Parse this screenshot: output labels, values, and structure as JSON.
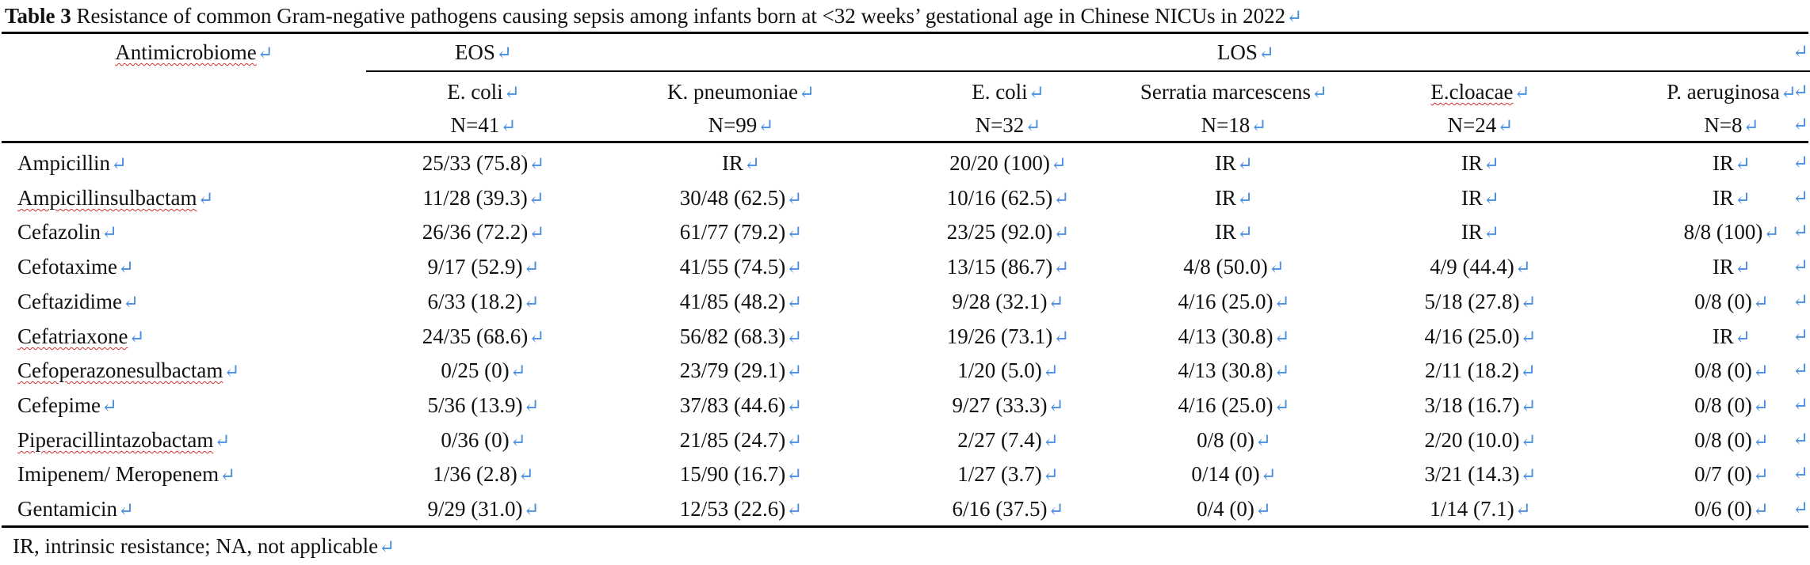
{
  "caption": {
    "label": "Table 3",
    "text": "Resistance of common Gram-negative pathogens causing sepsis among infants born at <32 weeks’ gestational age in Chinese NICUs in 2022"
  },
  "header": {
    "first_col": "Antimicrobiome",
    "group_eos": "EOS",
    "group_los": "LOS",
    "columns": [
      {
        "name": "E. coli",
        "n": "N=41"
      },
      {
        "name": "K. pneumoniae",
        "n": "N=99"
      },
      {
        "name": "E. coli",
        "n": "N=32"
      },
      {
        "name": "Serratia marcescens",
        "n": "N=18"
      },
      {
        "name": "E.cloacae",
        "n": "N=24"
      },
      {
        "name": "P. aeruginosa",
        "n": "N=8"
      }
    ]
  },
  "rows": [
    {
      "drug": "Ampicillin",
      "values": [
        "25/33 (75.8)",
        "IR",
        "20/20 (100)",
        "IR",
        "IR",
        "IR"
      ]
    },
    {
      "drug": "Ampicillinsulbactam",
      "values": [
        "11/28 (39.3)",
        "30/48 (62.5)",
        "10/16 (62.5)",
        "IR",
        "IR",
        "IR"
      ]
    },
    {
      "drug": "Cefazolin",
      "values": [
        "26/36 (72.2)",
        "61/77 (79.2)",
        "23/25 (92.0)",
        "IR",
        "IR",
        "8/8 (100)"
      ]
    },
    {
      "drug": "Cefotaxime",
      "values": [
        "9/17 (52.9)",
        "41/55 (74.5)",
        "13/15 (86.7)",
        "4/8 (50.0)",
        "4/9 (44.4)",
        "IR"
      ]
    },
    {
      "drug": "Ceftazidime",
      "values": [
        "6/33 (18.2)",
        "41/85 (48.2)",
        "9/28 (32.1)",
        "4/16 (25.0)",
        "5/18 (27.8)",
        "0/8 (0)"
      ]
    },
    {
      "drug": "Cefatriaxone",
      "values": [
        "24/35 (68.6)",
        "56/82 (68.3)",
        "19/26 (73.1)",
        "4/13 (30.8)",
        "4/16 (25.0)",
        "IR"
      ]
    },
    {
      "drug": "Cefoperazonesulbactam",
      "values": [
        "0/25 (0)",
        "23/79 (29.1)",
        "1/20 (5.0)",
        "4/13 (30.8)",
        "2/11 (18.2)",
        "0/8 (0)"
      ]
    },
    {
      "drug": "Cefepime",
      "values": [
        "5/36 (13.9)",
        "37/83 (44.6)",
        "9/27 (33.3)",
        "4/16 (25.0)",
        "3/18 (16.7)",
        "0/8 (0)"
      ]
    },
    {
      "drug": "Piperacillintazobactam",
      "values": [
        "0/36 (0)",
        "21/85 (24.7)",
        "2/27 (7.4)",
        "0/8 (0)",
        "2/20 (10.0)",
        "0/8 (0)"
      ]
    },
    {
      "drug": "Imipenem/ Meropenem",
      "values": [
        "1/36 (2.8)",
        "15/90 (16.7)",
        "1/27 (3.7)",
        "0/14 (0)",
        "3/21 (14.3)",
        "0/7 (0)"
      ]
    },
    {
      "drug": "Gentamicin",
      "values": [
        "9/29 (31.0)",
        "12/53 (22.6)",
        "6/16 (37.5)",
        "0/4 (0)",
        "1/14 (7.1)",
        "0/6 (0)"
      ]
    }
  ],
  "footnote": "IR, intrinsic resistance; NA, not applicable",
  "paragraph_mark": "↵"
}
